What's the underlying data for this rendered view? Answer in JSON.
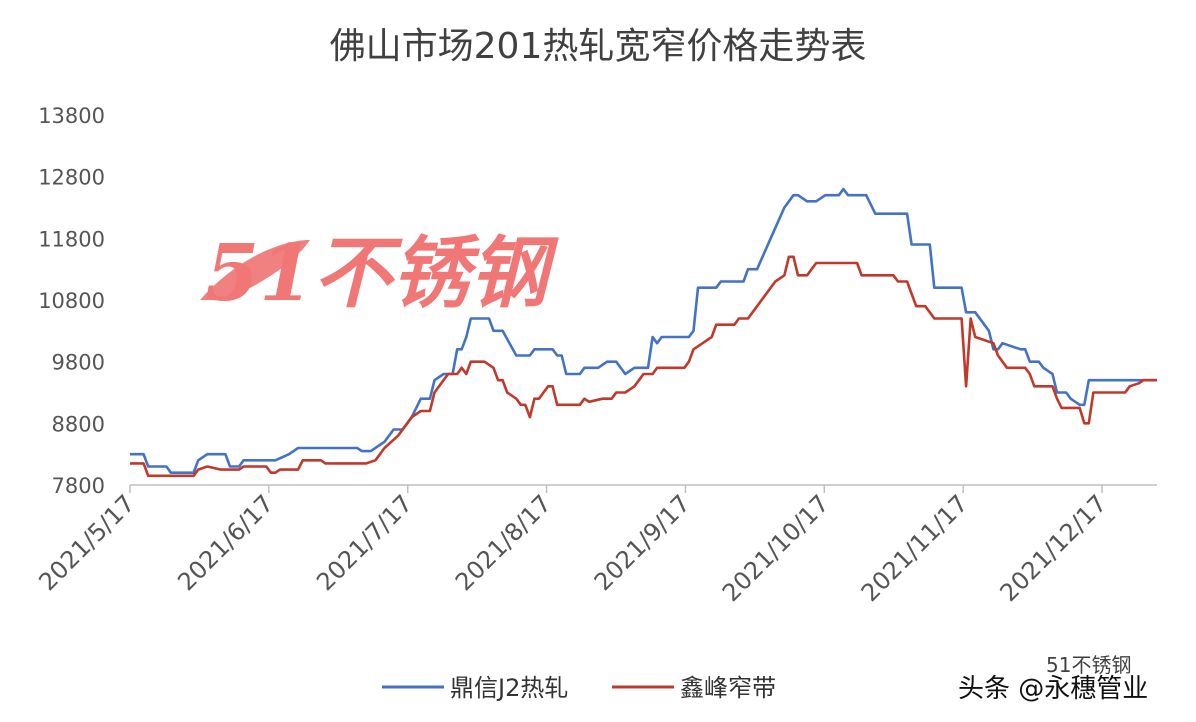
{
  "chart_data": {
    "type": "line",
    "title": "佛山市场201热轧宽窄价格走势表",
    "x_tick_labels": [
      "2021/5/17",
      "2021/6/17",
      "2021/7/17",
      "2021/8/17",
      "2021/9/17",
      "2021/10/17",
      "2021/11/17",
      "2021/12/17"
    ],
    "y_tick_labels": [
      "7800",
      "8800",
      "9800",
      "10800",
      "11800",
      "12800",
      "13800"
    ],
    "ylim": [
      7800,
      13800
    ],
    "x_range_days": [
      0,
      226
    ],
    "grid": false,
    "legend_position": "bottom",
    "series": [
      {
        "name": "鼎信J2热轧",
        "color": "#4472c4",
        "points": [
          [
            0,
            8300
          ],
          [
            3,
            8300
          ],
          [
            4,
            8100
          ],
          [
            8,
            8100
          ],
          [
            9,
            8000
          ],
          [
            14,
            8000
          ],
          [
            15,
            8200
          ],
          [
            17,
            8300
          ],
          [
            21,
            8300
          ],
          [
            22,
            8100
          ],
          [
            24,
            8100
          ],
          [
            25,
            8200
          ],
          [
            32,
            8200
          ],
          [
            35,
            8300
          ],
          [
            37,
            8400
          ],
          [
            50,
            8400
          ],
          [
            51,
            8350
          ],
          [
            53,
            8350
          ],
          [
            56,
            8500
          ],
          [
            58,
            8700
          ],
          [
            60,
            8700
          ],
          [
            62,
            8900
          ],
          [
            64,
            9200
          ],
          [
            66,
            9200
          ],
          [
            67,
            9500
          ],
          [
            69,
            9600
          ],
          [
            71,
            9600
          ],
          [
            72,
            10000
          ],
          [
            73,
            10000
          ],
          [
            74,
            10200
          ],
          [
            75,
            10500
          ],
          [
            79,
            10500
          ],
          [
            80,
            10300
          ],
          [
            82,
            10300
          ],
          [
            85,
            9900
          ],
          [
            88,
            9900
          ],
          [
            89,
            10000
          ],
          [
            93,
            10000
          ],
          [
            94,
            9900
          ],
          [
            95,
            9900
          ],
          [
            96,
            9600
          ],
          [
            99,
            9600
          ],
          [
            100,
            9700
          ],
          [
            103,
            9700
          ],
          [
            105,
            9800
          ],
          [
            107,
            9800
          ],
          [
            109,
            9600
          ],
          [
            111,
            9700
          ],
          [
            114,
            9700
          ],
          [
            115,
            10200
          ],
          [
            116,
            10100
          ],
          [
            117,
            10200
          ],
          [
            123,
            10200
          ],
          [
            124,
            10300
          ],
          [
            125,
            11000
          ],
          [
            129,
            11000
          ],
          [
            130,
            11100
          ],
          [
            135,
            11100
          ],
          [
            136,
            11300
          ],
          [
            138,
            11300
          ],
          [
            141,
            11800
          ],
          [
            144,
            12300
          ],
          [
            146,
            12500
          ],
          [
            147,
            12500
          ],
          [
            149,
            12400
          ],
          [
            151,
            12400
          ],
          [
            153,
            12500
          ],
          [
            156,
            12500
          ],
          [
            157,
            12600
          ],
          [
            158,
            12500
          ],
          [
            162,
            12500
          ],
          [
            164,
            12200
          ],
          [
            171,
            12200
          ],
          [
            172,
            11700
          ],
          [
            176,
            11700
          ],
          [
            177,
            11000
          ],
          [
            183,
            11000
          ],
          [
            184,
            10600
          ],
          [
            186,
            10600
          ],
          [
            189,
            10300
          ],
          [
            190,
            10000
          ],
          [
            191,
            10000
          ],
          [
            192,
            10100
          ],
          [
            194,
            10050
          ],
          [
            196,
            10000
          ],
          [
            197,
            10000
          ],
          [
            198,
            9800
          ],
          [
            200,
            9800
          ],
          [
            201,
            9700
          ],
          [
            203,
            9600
          ],
          [
            204,
            9300
          ],
          [
            206,
            9300
          ],
          [
            207,
            9200
          ],
          [
            209,
            9100
          ],
          [
            210,
            9100
          ],
          [
            211,
            9500
          ],
          [
            226,
            9500
          ]
        ]
      },
      {
        "name": "鑫峰窄带",
        "color": "#c0392b",
        "points": [
          [
            0,
            8150
          ],
          [
            3,
            8150
          ],
          [
            4,
            7950
          ],
          [
            14,
            7950
          ],
          [
            15,
            8050
          ],
          [
            17,
            8100
          ],
          [
            20,
            8050
          ],
          [
            24,
            8050
          ],
          [
            25,
            8100
          ],
          [
            30,
            8100
          ],
          [
            31,
            8000
          ],
          [
            32,
            8000
          ],
          [
            33,
            8050
          ],
          [
            37,
            8050
          ],
          [
            38,
            8200
          ],
          [
            42,
            8200
          ],
          [
            43,
            8150
          ],
          [
            52,
            8150
          ],
          [
            54,
            8200
          ],
          [
            56,
            8400
          ],
          [
            59,
            8600
          ],
          [
            62,
            8900
          ],
          [
            64,
            9000
          ],
          [
            66,
            9000
          ],
          [
            67,
            9300
          ],
          [
            70,
            9600
          ],
          [
            72,
            9600
          ],
          [
            73,
            9700
          ],
          [
            74,
            9600
          ],
          [
            75,
            9800
          ],
          [
            78,
            9800
          ],
          [
            80,
            9700
          ],
          [
            81,
            9500
          ],
          [
            82,
            9500
          ],
          [
            83,
            9300
          ],
          [
            85,
            9200
          ],
          [
            86,
            9100
          ],
          [
            87,
            9100
          ],
          [
            88,
            8900
          ],
          [
            89,
            9200
          ],
          [
            90,
            9200
          ],
          [
            91,
            9300
          ],
          [
            92,
            9400
          ],
          [
            93,
            9400
          ],
          [
            94,
            9100
          ],
          [
            96,
            9100
          ],
          [
            99,
            9100
          ],
          [
            100,
            9200
          ],
          [
            101,
            9150
          ],
          [
            104,
            9200
          ],
          [
            106,
            9200
          ],
          [
            107,
            9300
          ],
          [
            109,
            9300
          ],
          [
            111,
            9400
          ],
          [
            112,
            9500
          ],
          [
            113,
            9600
          ],
          [
            115,
            9600
          ],
          [
            116,
            9700
          ],
          [
            122,
            9700
          ],
          [
            123,
            9800
          ],
          [
            124,
            10000
          ],
          [
            126,
            10100
          ],
          [
            128,
            10200
          ],
          [
            129,
            10400
          ],
          [
            133,
            10400
          ],
          [
            134,
            10500
          ],
          [
            136,
            10500
          ],
          [
            138,
            10700
          ],
          [
            140,
            10900
          ],
          [
            142,
            11100
          ],
          [
            144,
            11200
          ],
          [
            145,
            11500
          ],
          [
            146,
            11500
          ],
          [
            147,
            11200
          ],
          [
            149,
            11200
          ],
          [
            150,
            11300
          ],
          [
            151,
            11400
          ],
          [
            160,
            11400
          ],
          [
            161,
            11200
          ],
          [
            168,
            11200
          ],
          [
            169,
            11100
          ],
          [
            171,
            11100
          ],
          [
            172,
            10900
          ],
          [
            173,
            10700
          ],
          [
            175,
            10700
          ],
          [
            176,
            10600
          ],
          [
            177,
            10500
          ],
          [
            183,
            10500
          ],
          [
            184,
            9400
          ],
          [
            185,
            10500
          ],
          [
            186,
            10200
          ],
          [
            190,
            10100
          ],
          [
            191,
            9900
          ],
          [
            192,
            9800
          ],
          [
            193,
            9700
          ],
          [
            197,
            9700
          ],
          [
            198,
            9600
          ],
          [
            199,
            9400
          ],
          [
            203,
            9400
          ],
          [
            204,
            9200
          ],
          [
            205,
            9050
          ],
          [
            209,
            9050
          ],
          [
            210,
            8800
          ],
          [
            211,
            8800
          ],
          [
            212,
            9300
          ],
          [
            219,
            9300
          ],
          [
            220,
            9400
          ],
          [
            222,
            9450
          ],
          [
            223,
            9500
          ],
          [
            226,
            9500
          ]
        ]
      }
    ]
  },
  "watermark": {
    "text": "51不锈钢",
    "color": "#e53935"
  },
  "credits": {
    "top_text": "51不锈钢",
    "bottom_text": "头条 @永穗管业"
  }
}
